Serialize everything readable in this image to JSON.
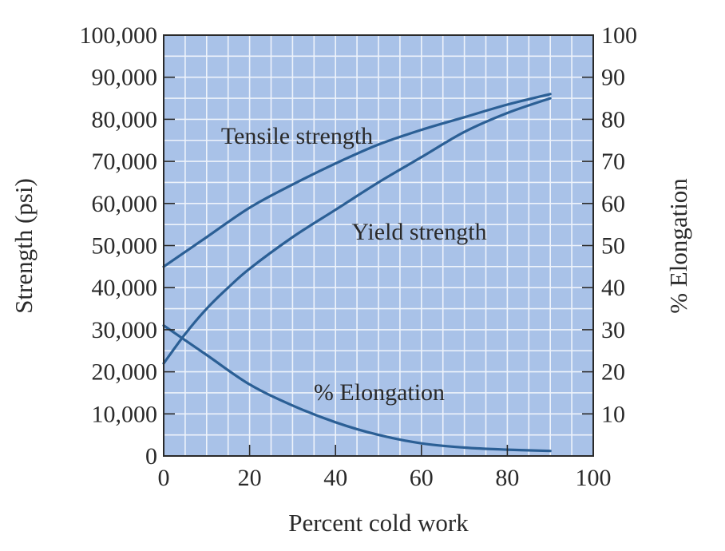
{
  "chart_data": {
    "type": "line",
    "title": "",
    "xlabel": "Percent cold work",
    "ylabel": "Strength (psi)",
    "y2label": "% Elongation",
    "xlim": [
      0,
      100
    ],
    "ylim": [
      0,
      100000
    ],
    "y2lim": [
      0,
      100
    ],
    "x_ticks": [
      0,
      20,
      40,
      60,
      80,
      100
    ],
    "x_tick_labels": [
      "0",
      "20",
      "40",
      "60",
      "80",
      "100"
    ],
    "y_ticks": [
      0,
      10000,
      20000,
      30000,
      40000,
      50000,
      60000,
      70000,
      80000,
      90000,
      100000
    ],
    "y_tick_labels": [
      "0",
      "10,000",
      "20,000",
      "30,000",
      "40,000",
      "50,000",
      "60,000",
      "70,000",
      "80,000",
      "90,000",
      "100,000"
    ],
    "y2_ticks": [
      10,
      20,
      30,
      40,
      50,
      60,
      70,
      80,
      90,
      100
    ],
    "y2_tick_labels": [
      "10",
      "20",
      "30",
      "40",
      "50",
      "60",
      "70",
      "80",
      "90",
      "100"
    ],
    "grid": true,
    "colors": {
      "plot_bg": "#a9c2e8",
      "grid": "#eef3fb",
      "line": "#2b5f95",
      "frame": "#2a2a2a"
    },
    "series": [
      {
        "name": "Tensile strength",
        "axis": "left",
        "x": [
          0,
          10,
          20,
          30,
          40,
          50,
          60,
          70,
          80,
          90
        ],
        "values": [
          45000,
          52000,
          59000,
          64500,
          69500,
          74000,
          77500,
          80500,
          83500,
          86000
        ]
      },
      {
        "name": "Yield strength",
        "axis": "left",
        "x": [
          0,
          5,
          10,
          15,
          20,
          30,
          40,
          50,
          60,
          70,
          80,
          90
        ],
        "values": [
          22000,
          29000,
          35000,
          40000,
          44500,
          52000,
          58500,
          65000,
          71000,
          77000,
          81500,
          85000
        ]
      },
      {
        "name": "% Elongation",
        "axis": "right",
        "x": [
          0,
          10,
          20,
          30,
          40,
          50,
          60,
          70,
          80,
          90
        ],
        "values": [
          31,
          24,
          17,
          12,
          8,
          5,
          3,
          2,
          1.5,
          1.2
        ]
      }
    ]
  }
}
